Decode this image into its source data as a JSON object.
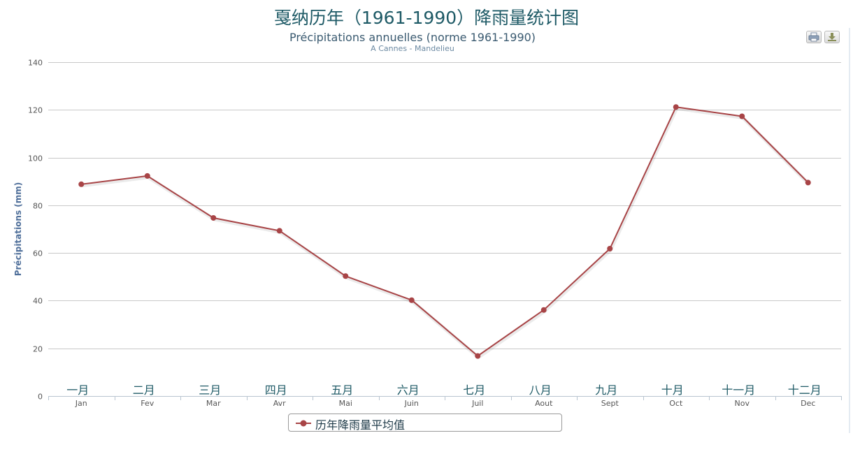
{
  "header": {
    "title": "戛纳历年（1961-1990）降雨量统计图",
    "subtitle": "Précipitations annuelles (norme 1961-1990)",
    "source_line": "A Cannes - Mandelieu"
  },
  "toolbar": {
    "print_icon": "printer-icon",
    "export_icon": "download-icon"
  },
  "colors": {
    "series": "#a84446",
    "grid": "#c8c8c8",
    "axis_label": "#4f6f9a",
    "tick": "#555555",
    "month_cn": "#1e5a66"
  },
  "chart_data": {
    "type": "line",
    "categories": [
      "Jan",
      "Fev",
      "Mar",
      "Avr",
      "Mai",
      "Juin",
      "Juil",
      "Aout",
      "Sept",
      "Oct",
      "Nov",
      "Dec"
    ],
    "categories_cn": [
      "一月",
      "二月",
      "三月",
      "四月",
      "五月",
      "六月",
      "七月",
      "八月",
      "九月",
      "十月",
      "十一月",
      "十二月"
    ],
    "series": [
      {
        "name": "历年降雨量平均值",
        "values": [
          88.8,
          92.3,
          74.7,
          69.3,
          50.3,
          40.2,
          16.8,
          36.1,
          61.8,
          121.2,
          117.3,
          89.5
        ]
      }
    ],
    "title": "戛纳历年（1961-1990）降雨量统计图",
    "subtitle": "Précipitations annuelles (norme 1961-1990)",
    "xlabel": "",
    "ylabel": "Précipitations (mm)",
    "ylim": [
      0,
      140
    ],
    "yticks": [
      0,
      20,
      40,
      60,
      80,
      100,
      120,
      140
    ],
    "grid": true,
    "legend_position": "bottom"
  }
}
